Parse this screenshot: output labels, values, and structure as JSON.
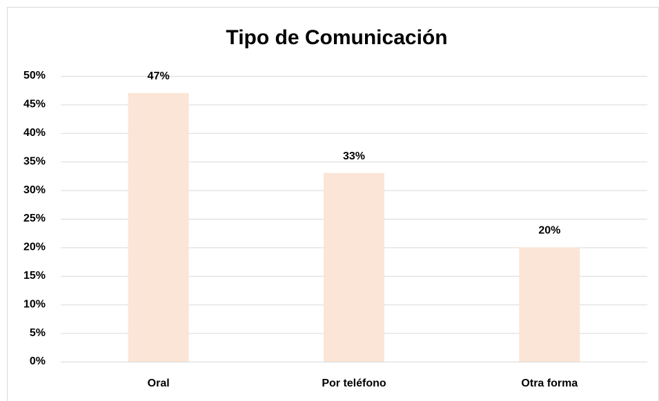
{
  "chart_data": {
    "type": "bar",
    "title": "Tipo de Comunicación",
    "categories": [
      "Oral",
      "Por teléfono",
      "Otra forma"
    ],
    "values": [
      47,
      33,
      20
    ],
    "value_labels": [
      "47%",
      "33%",
      "20%"
    ],
    "color": "#fbe5d6",
    "ylim": [
      0,
      50
    ],
    "yticks": [
      {
        "value": 0,
        "label": "0%"
      },
      {
        "value": 5,
        "label": "5%"
      },
      {
        "value": 10,
        "label": "10%"
      },
      {
        "value": 15,
        "label": "15%"
      },
      {
        "value": 20,
        "label": "20%"
      },
      {
        "value": 25,
        "label": "25%"
      },
      {
        "value": 30,
        "label": "30%"
      },
      {
        "value": 35,
        "label": "35%"
      },
      {
        "value": 40,
        "label": "40%"
      },
      {
        "value": 45,
        "label": "45%"
      },
      {
        "value": 50,
        "label": "50%"
      }
    ],
    "grid": true
  }
}
